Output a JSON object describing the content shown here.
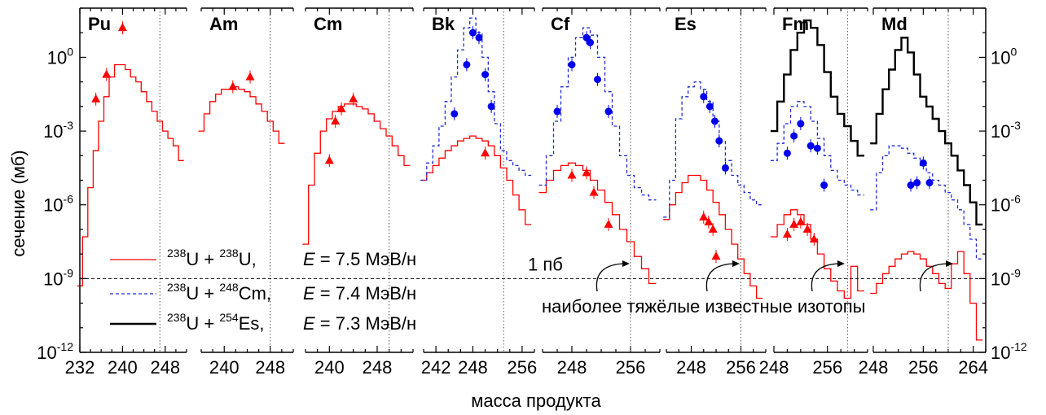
{
  "chart_data": {
    "type": "line",
    "ylabel": "сечение (мб)",
    "xlabel": "масса продукта",
    "yscale": "log",
    "ylim_exp": [
      -12,
      2
    ],
    "y_ticks": [
      {
        "base": "10",
        "exp": "0",
        "value": 1
      },
      {
        "base": "10",
        "exp": "-3",
        "value": 0.001
      },
      {
        "base": "10",
        "exp": "-6",
        "value": 1e-06
      },
      {
        "base": "10",
        "exp": "-9",
        "value": 1e-09
      },
      {
        "base": "10",
        "exp": "-12",
        "value": 1e-12
      }
    ],
    "colors": {
      "uu": "#ff0000",
      "ucm": "#1e2bd6",
      "ues": "#000000",
      "exp_red": "#ff0000",
      "exp_blue": "#0000ee"
    },
    "reference_line": {
      "value": 1e-09,
      "label": "1 пб"
    },
    "annotation": "наиболее тяжёлые известные изотопы",
    "legend": [
      {
        "id": "uu",
        "proj": "238",
        "targ": "238",
        "pre": "U + ",
        "el": "U,",
        "energy": "= 7.5 МэВ/н",
        "style": "solid-red"
      },
      {
        "id": "ucm",
        "proj": "238",
        "targ": "248",
        "pre": "U + ",
        "el": "Cm,",
        "energy": "= 7.4 МэВ/н",
        "style": "dashed-blue"
      },
      {
        "id": "ues",
        "proj": "238",
        "targ": "254",
        "pre": "U + ",
        "el": "Es,",
        "energy": "= 7.3 МэВ/н",
        "style": "solid-black"
      }
    ],
    "legend_e": "E",
    "panels": [
      {
        "element": "Pu",
        "xlim": [
          232,
          252
        ],
        "xticks": [
          232,
          240,
          248
        ],
        "heaviest_known": 247,
        "series": {
          "uu": {
            "x": [
              232,
              233,
              234,
              235,
              236,
              237,
              238,
              239,
              240,
              241,
              242,
              243,
              244,
              245,
              246,
              247,
              248,
              249,
              250,
              251
            ],
            "logy": [
              -9.3,
              -7.3,
              -5.3,
              -3.8,
              -2.6,
              -1.6,
              -0.8,
              -0.3,
              -0.3,
              -0.5,
              -0.8,
              -1.0,
              -1.4,
              -1.8,
              -2.2,
              -2.6,
              -3.0,
              -3.3,
              -3.6,
              -4.2
            ]
          }
        },
        "points": {
          "red": [
            {
              "x": 235,
              "logy": -1.7
            },
            {
              "x": 237,
              "logy": -0.7
            },
            {
              "x": 240,
              "logy": 1.2
            }
          ]
        }
      },
      {
        "element": "Am",
        "xlim": [
          236,
          252
        ],
        "xticks": [
          240,
          248
        ],
        "heaviest_known": 248,
        "series": {
          "uu": {
            "x": [
              236,
              237,
              238,
              239,
              240,
              241,
              242,
              243,
              244,
              245,
              246,
              247,
              248,
              249,
              250
            ],
            "logy": [
              -3.0,
              -2.3,
              -1.8,
              -1.5,
              -1.3,
              -1.3,
              -1.2,
              -1.3,
              -1.4,
              -1.6,
              -1.9,
              -2.2,
              -2.6,
              -3.0,
              -3.5
            ]
          }
        },
        "points": {
          "red": [
            {
              "x": 241.5,
              "logy": -1.2
            },
            {
              "x": 244.5,
              "logy": -0.8
            }
          ]
        }
      },
      {
        "element": "Cm",
        "xlim": [
          236,
          254
        ],
        "xticks": [
          240,
          248
        ],
        "heaviest_known": 250,
        "series": {
          "uu": {
            "x": [
              236,
              237,
              238,
              239,
              240,
              241,
              242,
              243,
              244,
              245,
              246,
              247,
              248,
              249,
              250,
              251,
              252,
              253
            ],
            "logy": [
              -7.6,
              -5.2,
              -3.9,
              -3.0,
              -2.5,
              -2.2,
              -2.0,
              -1.9,
              -1.9,
              -2.0,
              -2.1,
              -2.3,
              -2.6,
              -2.9,
              -3.2,
              -3.6,
              -4.0,
              -4.4
            ]
          }
        },
        "points": {
          "red": [
            {
              "x": 240,
              "logy": -4.2
            },
            {
              "x": 241,
              "logy": -2.6
            },
            {
              "x": 242,
              "logy": -2.1
            },
            {
              "x": 244,
              "logy": -1.7
            }
          ]
        }
      },
      {
        "element": "Bk",
        "xlim": [
          240,
          258
        ],
        "xticks": [
          242,
          248,
          256
        ],
        "heaviest_known": 253,
        "series": {
          "uu": {
            "x": [
              240,
              241,
              242,
              243,
              244,
              245,
              246,
              247,
              248,
              249,
              250,
              251,
              252,
              253,
              254,
              255,
              256,
              257
            ],
            "logy": [
              -5.0,
              -4.7,
              -4.4,
              -4.1,
              -3.8,
              -3.6,
              -3.4,
              -3.3,
              -3.2,
              -3.3,
              -3.4,
              -3.6,
              -4.0,
              -4.5,
              -5.0,
              -5.6,
              -6.2,
              -6.8
            ]
          },
          "ucm": {
            "x": [
              240,
              241,
              242,
              243,
              244,
              245,
              246,
              247,
              248,
              249,
              250,
              251,
              252,
              253,
              254,
              255,
              256,
              257
            ],
            "logy": [
              -5.0,
              -4.3,
              -3.6,
              -2.8,
              -1.8,
              -0.8,
              0.3,
              1.2,
              1.6,
              1.0,
              0.0,
              -1.4,
              -2.7,
              -3.8,
              -4.2,
              -4.4,
              -4.6,
              -4.8
            ]
          }
        },
        "points": {
          "red": [
            {
              "x": 250,
              "logy": -3.9
            }
          ],
          "blue": [
            {
              "x": 245,
              "logy": -2.3
            },
            {
              "x": 247,
              "logy": -0.3
            },
            {
              "x": 248,
              "logy": 1.0
            },
            {
              "x": 249,
              "logy": 0.8
            },
            {
              "x": 250,
              "logy": -0.7
            },
            {
              "x": 251,
              "logy": -2.0
            }
          ]
        }
      },
      {
        "element": "Cf",
        "xlim": [
          244,
          260
        ],
        "xticks": [
          248,
          256
        ],
        "heaviest_known": 256,
        "series": {
          "uu": {
            "x": [
              244,
              245,
              246,
              247,
              248,
              249,
              250,
              251,
              252,
              253,
              254,
              255,
              256,
              257,
              258,
              259
            ],
            "logy": [
              -5.5,
              -5.0,
              -4.6,
              -4.4,
              -4.3,
              -4.4,
              -4.6,
              -5.0,
              -5.4,
              -5.9,
              -6.4,
              -7.0,
              -7.5,
              -8.1,
              -8.6,
              -9.2
            ]
          },
          "ucm": {
            "x": [
              244,
              245,
              246,
              247,
              248,
              249,
              250,
              251,
              252,
              253,
              254,
              255,
              256,
              257,
              258,
              259
            ],
            "logy": [
              -5.2,
              -4.0,
              -2.6,
              -1.2,
              0.0,
              0.8,
              1.2,
              0.9,
              0.0,
              -1.4,
              -2.8,
              -4.0,
              -4.8,
              -5.3,
              -5.6,
              -5.8
            ]
          }
        },
        "points": {
          "red": [
            {
              "x": 248,
              "logy": -4.8
            },
            {
              "x": 250,
              "logy": -4.7
            },
            {
              "x": 251,
              "logy": -5.5
            },
            {
              "x": 253,
              "logy": -6.8
            }
          ],
          "blue": [
            {
              "x": 246,
              "logy": -2.2
            },
            {
              "x": 248,
              "logy": -0.3
            },
            {
              "x": 250,
              "logy": 0.8
            },
            {
              "x": 250.5,
              "logy": 0.6
            },
            {
              "x": 251.5,
              "logy": -0.9
            },
            {
              "x": 253,
              "logy": -2.2
            }
          ]
        }
      },
      {
        "element": "Es",
        "xlim": [
          244,
          260
        ],
        "xticks": [
          248,
          256
        ],
        "heaviest_known": 256,
        "series": {
          "uu": {
            "x": [
              244,
              245,
              246,
              247,
              248,
              249,
              250,
              251,
              252,
              253,
              254,
              255,
              256,
              257,
              258,
              259
            ],
            "logy": [
              -6.6,
              -6.0,
              -5.5,
              -5.1,
              -4.8,
              -4.8,
              -5.0,
              -5.4,
              -5.9,
              -6.4,
              -7.0,
              -7.6,
              -8.2,
              -8.8,
              -9.3,
              -9.8
            ]
          },
          "ucm": {
            "x": [
              244,
              245,
              246,
              247,
              248,
              249,
              250,
              251,
              252,
              253,
              254,
              255,
              256,
              257,
              258,
              259
            ],
            "logy": [
              -6.5,
              -5.0,
              -2.5,
              -1.6,
              -1.2,
              -1.0,
              -1.3,
              -1.8,
              -2.6,
              -3.4,
              -4.2,
              -4.8,
              -5.2,
              -5.5,
              -5.8,
              -6.0
            ]
          }
        },
        "points": {
          "red": [
            {
              "x": 250,
              "logy": -6.5
            },
            {
              "x": 250.8,
              "logy": -6.7
            },
            {
              "x": 251.5,
              "logy": -7.0
            },
            {
              "x": 252,
              "logy": -8.1
            }
          ],
          "blue": [
            {
              "x": 250,
              "logy": -1.6
            },
            {
              "x": 251,
              "logy": -2.0
            },
            {
              "x": 251.8,
              "logy": -2.6
            },
            {
              "x": 252.5,
              "logy": -3.4
            },
            {
              "x": 253.5,
              "logy": -4.5
            }
          ]
        }
      },
      {
        "element": "Fm",
        "xlim": [
          248,
          262
        ],
        "xticks": [
          248,
          256
        ],
        "heaviest_known": 259,
        "series": {
          "uu": {
            "x": [
              248,
              249,
              250,
              251,
              252,
              253,
              254,
              255,
              256,
              257,
              258,
              259,
              260,
              261
            ],
            "logy": [
              -7.3,
              -6.8,
              -6.4,
              -6.2,
              -6.4,
              -6.8,
              -7.4,
              -8.0,
              -8.6,
              -9.1,
              -9.5,
              -9.8,
              -8.5,
              -9.5
            ]
          },
          "ucm": {
            "x": [
              248,
              249,
              250,
              251,
              252,
              253,
              254,
              255,
              256,
              257,
              258,
              259,
              260,
              261
            ],
            "logy": [
              -4.2,
              -3.5,
              -2.7,
              -2.0,
              -1.8,
              -2.0,
              -2.6,
              -3.3,
              -4.0,
              -4.6,
              -5.0,
              -5.2,
              -5.4,
              -5.6
            ]
          },
          "ues": {
            "x": [
              248,
              249,
              250,
              251,
              252,
              253,
              254,
              255,
              256,
              257,
              258,
              259,
              260,
              261
            ],
            "logy": [
              -3.0,
              -1.8,
              -0.7,
              0.3,
              1.0,
              1.5,
              1.2,
              0.5,
              -0.6,
              -1.6,
              -2.3,
              -2.8,
              -3.4,
              -4.0
            ]
          }
        },
        "points": {
          "red": [
            {
              "x": 250,
              "logy": -7.2
            },
            {
              "x": 251,
              "logy": -6.8
            },
            {
              "x": 252,
              "logy": -6.7
            },
            {
              "x": 253,
              "logy": -7.0
            },
            {
              "x": 254,
              "logy": -7.4
            }
          ],
          "blue": [
            {
              "x": 250,
              "logy": -3.9
            },
            {
              "x": 251,
              "logy": -3.2
            },
            {
              "x": 252,
              "logy": -2.7
            },
            {
              "x": 253.5,
              "logy": -3.6
            },
            {
              "x": 254.5,
              "logy": -3.7
            },
            {
              "x": 255.5,
              "logy": -5.2
            }
          ]
        }
      },
      {
        "element": "Md",
        "xlim": [
          248,
          266
        ],
        "xticks": [
          248,
          256,
          264
        ],
        "heaviest_known": 260,
        "series": {
          "uu": {
            "x": [
              248,
              249,
              250,
              251,
              252,
              253,
              254,
              255,
              256,
              257,
              258,
              259,
              260,
              261,
              262,
              263,
              264,
              265
            ],
            "logy": [
              -9.6,
              -9.2,
              -8.8,
              -8.5,
              -8.2,
              -8.0,
              -7.9,
              -8.0,
              -8.2,
              -8.5,
              -8.8,
              -9.2,
              -9.4,
              -8.4,
              -7.9,
              -8.8,
              -10.0,
              -11.5
            ]
          },
          "ucm": {
            "x": [
              248,
              249,
              250,
              251,
              252,
              253,
              254,
              255,
              256,
              257,
              258,
              259,
              260,
              261,
              262,
              263,
              264,
              265
            ],
            "logy": [
              -6.2,
              -4.7,
              -4.0,
              -3.6,
              -3.6,
              -3.7,
              -3.9,
              -4.1,
              -4.4,
              -4.7,
              -5.0,
              -5.2,
              -5.5,
              -5.8,
              -6.2,
              -6.8,
              -7.4,
              -8.2
            ]
          },
          "ues": {
            "x": [
              248,
              249,
              250,
              251,
              252,
              253,
              254,
              255,
              256,
              257,
              258,
              259,
              260,
              261,
              262,
              263,
              264,
              265
            ],
            "logy": [
              -3.5,
              -2.3,
              -1.3,
              -0.5,
              0.3,
              0.8,
              0.2,
              -0.7,
              -1.6,
              -2.0,
              -2.5,
              -3.0,
              -3.5,
              -4.0,
              -4.6,
              -5.2,
              -5.9,
              -6.8
            ]
          }
        },
        "points": {
          "blue": [
            {
              "x": 254,
              "logy": -5.2
            },
            {
              "x": 255,
              "logy": -5.1
            },
            {
              "x": 256,
              "logy": -4.3
            },
            {
              "x": 257,
              "logy": -5.1
            }
          ]
        }
      }
    ]
  }
}
